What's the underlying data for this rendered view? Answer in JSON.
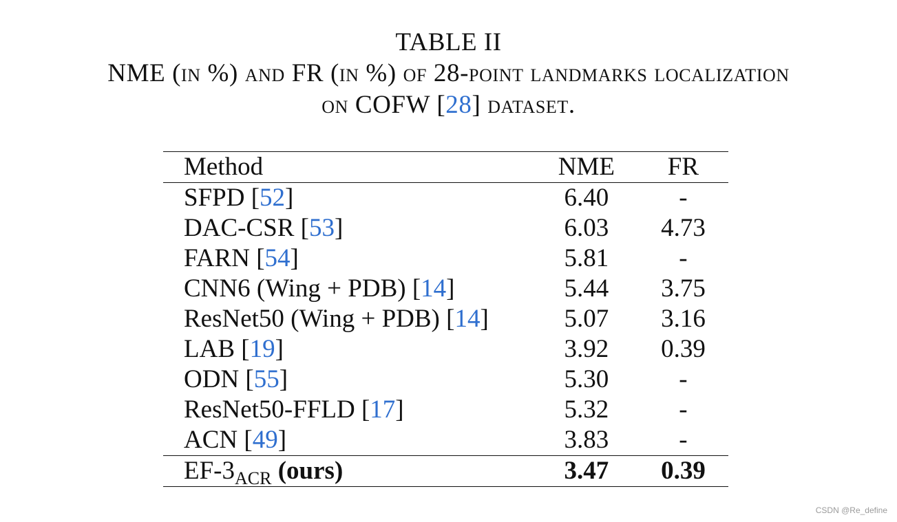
{
  "caption": {
    "label": "TABLE II",
    "title_line1": "NME (in %) and FR (in %) of 28-point landmarks localization",
    "title_line2_pre": "on COFW [",
    "title_line2_ref": "28",
    "title_line2_post": "] dataset."
  },
  "table": {
    "headers": {
      "method": "Method",
      "nme": "NME",
      "fr": "FR"
    },
    "rows": [
      {
        "method": "SFPD [",
        "ref": "52",
        "close": "]",
        "nme": "6.40",
        "fr": "-"
      },
      {
        "method": "DAC-CSR [",
        "ref": "53",
        "close": "]",
        "nme": "6.03",
        "fr": "4.73"
      },
      {
        "method": "FARN [",
        "ref": "54",
        "close": "]",
        "nme": "5.81",
        "fr": "-"
      },
      {
        "method": "CNN6 (Wing + PDB) [",
        "ref": "14",
        "close": "]",
        "nme": "5.44",
        "fr": "3.75"
      },
      {
        "method": "ResNet50 (Wing + PDB) [",
        "ref": "14",
        "close": "]",
        "nme": "5.07",
        "fr": "3.16"
      },
      {
        "method": "LAB [",
        "ref": "19",
        "close": "]",
        "nme": "3.92",
        "fr": "0.39"
      },
      {
        "method": "ODN [",
        "ref": "55",
        "close": "]",
        "nme": "5.30",
        "fr": "-"
      },
      {
        "method": "ResNet50-FFLD [",
        "ref": "17",
        "close": "]",
        "nme": "5.32",
        "fr": "-"
      },
      {
        "method": "ACN [",
        "ref": "49",
        "close": "]",
        "nme": "3.83",
        "fr": "-"
      }
    ],
    "ours": {
      "method_base": "EF-3",
      "method_sub": "ACR",
      "method_tag": "(ours)",
      "nme": "3.47",
      "fr": "0.39"
    }
  },
  "watermark": "CSDN @Re_define",
  "colors": {
    "reference_link": "#2f6fcf",
    "text": "#111111"
  }
}
